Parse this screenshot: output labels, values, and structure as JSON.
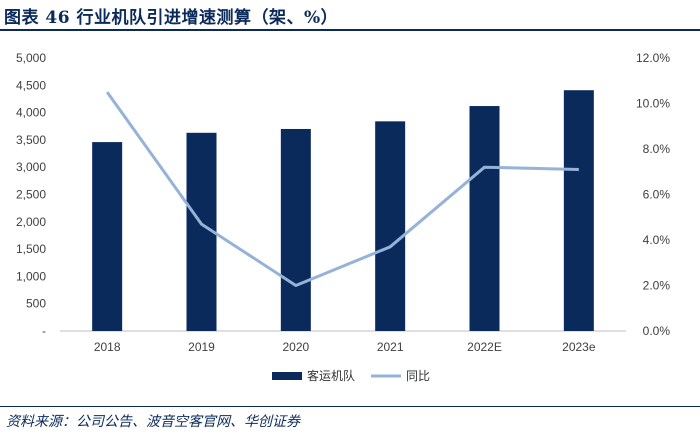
{
  "figure": {
    "title": "图表 46   行业机队引进增速测算（架、%）",
    "source": "资料来源：公司公告、波音空客官网、华创证券"
  },
  "colors": {
    "header": "#0b2a5c",
    "bar": "#0b2a5c",
    "line": "#95b3d7",
    "axis": "#bfbfbf",
    "text": "#404040"
  },
  "chart_data": {
    "type": "bar+line",
    "categories": [
      "2018",
      "2019",
      "2020",
      "2021",
      "2022E",
      "2023e"
    ],
    "series": [
      {
        "name": "客运机队",
        "type": "bar",
        "axis": "left",
        "values": [
          3460,
          3630,
          3700,
          3840,
          4120,
          4410
        ]
      },
      {
        "name": "同比",
        "type": "line",
        "axis": "right",
        "values": [
          10.5,
          4.7,
          2.0,
          3.7,
          7.2,
          7.1
        ]
      }
    ],
    "left_axis": {
      "ylim": [
        0,
        5000
      ],
      "ticks": [
        0,
        500,
        1000,
        1500,
        2000,
        2500,
        3000,
        3500,
        4000,
        4500,
        5000
      ],
      "tick_labels": [
        "-",
        "500",
        "1,000",
        "1,500",
        "2,000",
        "2,500",
        "3,000",
        "3,500",
        "4,000",
        "4,500",
        "5,000"
      ]
    },
    "right_axis": {
      "ylim": [
        0,
        12
      ],
      "ticks": [
        0,
        2,
        4,
        6,
        8,
        10,
        12
      ],
      "tick_labels": [
        "0.0%",
        "2.0%",
        "4.0%",
        "6.0%",
        "8.0%",
        "10.0%",
        "12.0%"
      ]
    },
    "legend": {
      "position": "bottom",
      "entries": [
        "客运机队",
        "同比"
      ]
    }
  }
}
